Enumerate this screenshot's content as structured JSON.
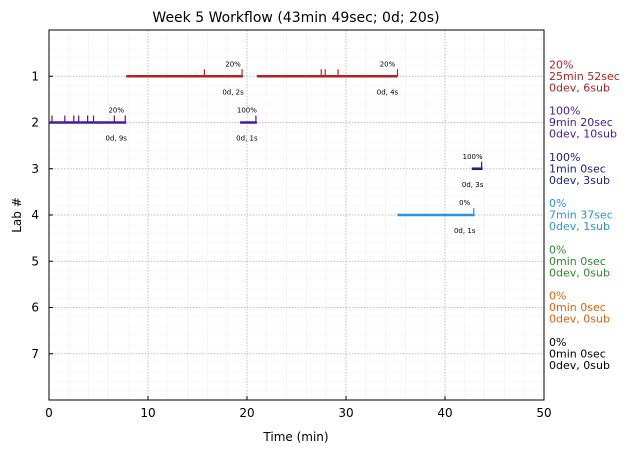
{
  "chart_data": {
    "type": "timeline",
    "title": "Week 5 Workflow (43min 49sec; 0d; 20s)",
    "xlabel": "Time (min)",
    "ylabel": "Lab #",
    "xlim": [
      0,
      50
    ],
    "ylim": [
      8,
      0
    ],
    "xticks": [
      "0",
      "10",
      "20",
      "30",
      "40",
      "50"
    ],
    "xtick_values": [
      0,
      10,
      20,
      30,
      40,
      50
    ],
    "yticks": [
      "1",
      "2",
      "3",
      "4",
      "5",
      "6",
      "7"
    ],
    "ytick_values": [
      1,
      2,
      3,
      4,
      5,
      6,
      7
    ],
    "grid": true,
    "labs": [
      {
        "lab": 1,
        "color": "#b22222",
        "segments": [
          {
            "start": 7.8,
            "end": 19.6,
            "pct_label": "20%",
            "info_label": "0d, 2s",
            "ticks": [
              15.7,
              19.5
            ]
          },
          {
            "start": 21.0,
            "end": 35.2,
            "pct_label": "20%",
            "info_label": "0d, 4s",
            "ticks": [
              27.5,
              27.9,
              29.2,
              35.2
            ]
          }
        ],
        "summary": [
          "20%",
          "25min 52sec",
          "0dev, 6sub"
        ]
      },
      {
        "lab": 2,
        "color": "#4b1a9a",
        "segments": [
          {
            "start": 0.0,
            "end": 7.8,
            "pct_label": "20%",
            "info_label": "0d, 9s",
            "ticks": [
              0.3,
              1.6,
              2.5,
              3.0,
              3.9,
              4.5,
              6.6,
              7.7
            ]
          },
          {
            "start": 19.3,
            "end": 21.0,
            "pct_label": "100%",
            "info_label": "0d, 1s",
            "ticks": [
              20.9
            ]
          }
        ],
        "summary": [
          "100%",
          "9min 20sec",
          "0dev, 10sub"
        ]
      },
      {
        "lab": 3,
        "color": "#1a237e",
        "segments": [
          {
            "start": 42.7,
            "end": 43.8,
            "pct_label": "100%",
            "info_label": "0d, 3s",
            "ticks": [
              43.7
            ]
          }
        ],
        "summary": [
          "100%",
          "1min 0sec",
          "0dev, 3sub"
        ]
      },
      {
        "lab": 4,
        "color": "#2e90e0",
        "segments": [
          {
            "start": 35.2,
            "end": 43.0,
            "pct_label": "0%",
            "info_label": "0d, 1s",
            "ticks": [
              42.9
            ]
          }
        ],
        "summary": [
          "0%",
          "7min 37sec",
          "0dev, 1sub"
        ]
      },
      {
        "lab": 5,
        "color": "#2e8b2e",
        "segments": [],
        "summary": [
          "0%",
          "0min 0sec",
          "0dev, 0sub"
        ]
      },
      {
        "lab": 6,
        "color": "#e0600a",
        "segments": [],
        "summary": [
          "0%",
          "0min 0sec",
          "0dev, 0sub"
        ]
      },
      {
        "lab": 7,
        "color": "#000000",
        "segments": [],
        "summary": [
          "0%",
          "0min 0sec",
          "0dev, 0sub"
        ]
      }
    ]
  }
}
